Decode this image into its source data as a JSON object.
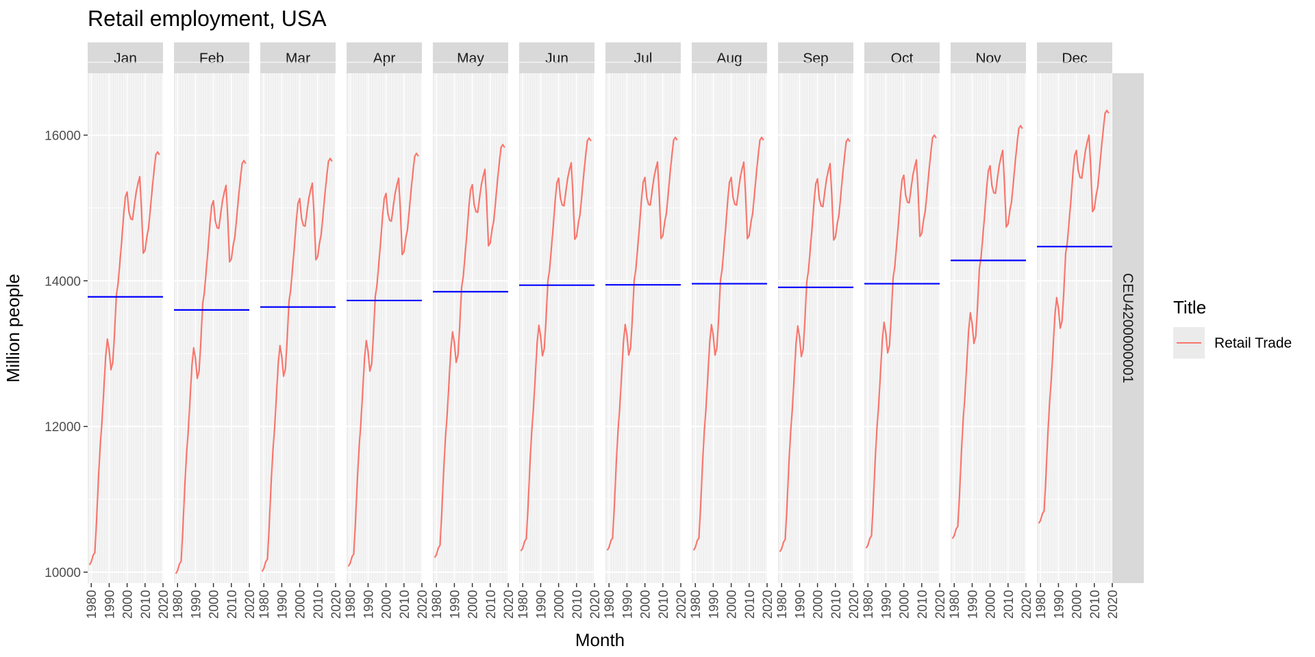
{
  "chart_data": {
    "type": "line",
    "title": "Retail employment, USA",
    "xlabel": "Month",
    "ylabel": "Million people",
    "facet_row_label": "CEU4200000001",
    "facets": [
      "Jan",
      "Feb",
      "Mar",
      "Apr",
      "May",
      "Jun",
      "Jul",
      "Aug",
      "Sep",
      "Oct",
      "Nov",
      "Dec"
    ],
    "x_ticks": [
      "1980",
      "1990",
      "2000",
      "2010",
      "2020"
    ],
    "x_range": [
      1978,
      2020
    ],
    "y_ticks": [
      10000,
      12000,
      14000,
      16000
    ],
    "ylim": [
      9850,
      16850
    ],
    "grid": true,
    "legend": {
      "title": "Title",
      "placement": "right",
      "entries": [
        {
          "label": "Retail Trade",
          "color": "#F8766D"
        }
      ]
    },
    "colors": {
      "series": "#F8766D",
      "mean_line": "#0000FF",
      "panel_bg": "#EBEBEB",
      "strip_bg": "#D9D9D9"
    },
    "means": [
      13780,
      13600,
      13640,
      13730,
      13850,
      13940,
      13945,
      13960,
      13910,
      13960,
      14280,
      14470
    ],
    "series": [
      {
        "name": "Retail Trade",
        "x": [
          1979,
          1980,
          1981,
          1982,
          1983,
          1984,
          1985,
          1986,
          1987,
          1988,
          1989,
          1990,
          1991,
          1992,
          1993,
          1994,
          1995,
          1996,
          1997,
          1998,
          1999,
          2000,
          2001,
          2002,
          2003,
          2004,
          2005,
          2006,
          2007,
          2008,
          2009,
          2010,
          2011,
          2012,
          2013,
          2014,
          2015,
          2016,
          2017,
          2018
        ],
        "values": [
          10150,
          10190,
          10280,
          10320,
          10780,
          11330,
          11780,
          12130,
          12560,
          13000,
          13250,
          13100,
          12830,
          12930,
          13340,
          13850,
          14020,
          14310,
          14610,
          14940,
          15200,
          15270,
          15000,
          14900,
          14890,
          15080,
          15260,
          15380,
          15480,
          15030,
          14430,
          14470,
          14650,
          14780,
          15050,
          15320,
          15560,
          15780,
          15820,
          15780
        ],
        "bump": [
          0,
          0,
          0,
          0,
          0,
          0,
          0,
          0,
          0,
          0,
          0,
          0,
          0,
          0,
          0,
          0,
          0,
          0,
          0,
          0,
          0,
          0,
          0,
          0,
          0,
          0,
          0,
          0,
          0,
          0,
          0,
          0,
          0,
          0,
          0,
          0,
          0,
          0,
          0,
          0
        ],
        "offsets": [
          -50,
          -170,
          -140,
          -70,
          50,
          140,
          150,
          150,
          130,
          180,
          310,
          520
        ]
      }
    ]
  }
}
